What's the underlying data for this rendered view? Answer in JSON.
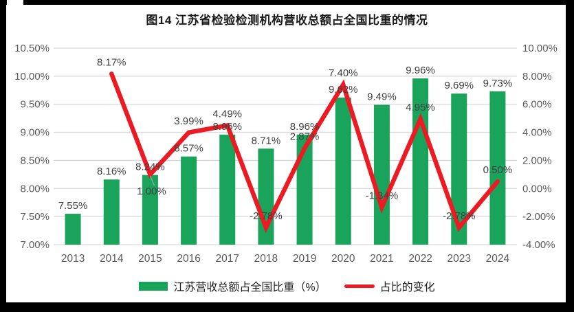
{
  "figure": {
    "title": "图14 江苏省检验检测机构营收总额占全国比重的情况"
  },
  "chart_data": {
    "type": "combo-bar-line",
    "title": "图14 江苏省检验检测机构营收总额占全国比重的情况",
    "categories": [
      "2013",
      "2014",
      "2015",
      "2016",
      "2017",
      "2018",
      "2019",
      "2020",
      "2021",
      "2022",
      "2023",
      "2024"
    ],
    "series": [
      {
        "name": "江苏营收总额占全国比重（%）",
        "type": "bar",
        "axis": "left",
        "color": "#19A35B",
        "values": [
          7.55,
          8.16,
          8.24,
          8.57,
          8.96,
          8.71,
          8.96,
          9.62,
          9.49,
          9.96,
          9.69,
          9.73
        ],
        "labels": [
          "7.55%",
          "8.16%",
          "8.24%",
          "8.57%",
          "8.96%",
          "8.71%",
          "8.96%",
          "9.62%",
          "9.49%",
          "9.96%",
          "9.69%",
          "9.73%"
        ]
      },
      {
        "name": "占比的变化",
        "type": "line",
        "axis": "right",
        "color": "#EC1B23",
        "values": [
          null,
          8.17,
          1.0,
          3.99,
          4.49,
          -2.78,
          2.87,
          7.4,
          -1.34,
          4.95,
          -2.78,
          0.5
        ],
        "labels": [
          null,
          "8.17%",
          "1.00%",
          "3.99%",
          "4.49%",
          "-2.78%",
          "2.87%",
          "7.40%",
          "-1.34%",
          "4.95%",
          "-2.78%",
          "0.50%"
        ],
        "label_below_categories": [
          "2015"
        ]
      }
    ],
    "left_axis": {
      "min": 7.0,
      "max": 10.5,
      "step": 0.5,
      "ticks_top_to_bottom": [
        "10.50%",
        "10.00%",
        "9.50%",
        "9.00%",
        "8.50%",
        "8.00%",
        "7.50%",
        "7.00%"
      ]
    },
    "right_axis": {
      "min": -4.0,
      "max": 10.0,
      "step": 2.0,
      "ticks_top_to_bottom": [
        "10.00%",
        "8.00%",
        "6.00%",
        "4.00%",
        "2.00%",
        "0.00%",
        "-2.00%",
        "-4.00%"
      ]
    },
    "grid": true,
    "legend_position": "bottom",
    "colors": {
      "grid": "#D9D9D9",
      "axis_text": "#595959",
      "data_label": "#404040",
      "leader": "#A6A6A6",
      "title_text": "#1A1A1A",
      "legend_text": "#1F1F1F"
    }
  }
}
